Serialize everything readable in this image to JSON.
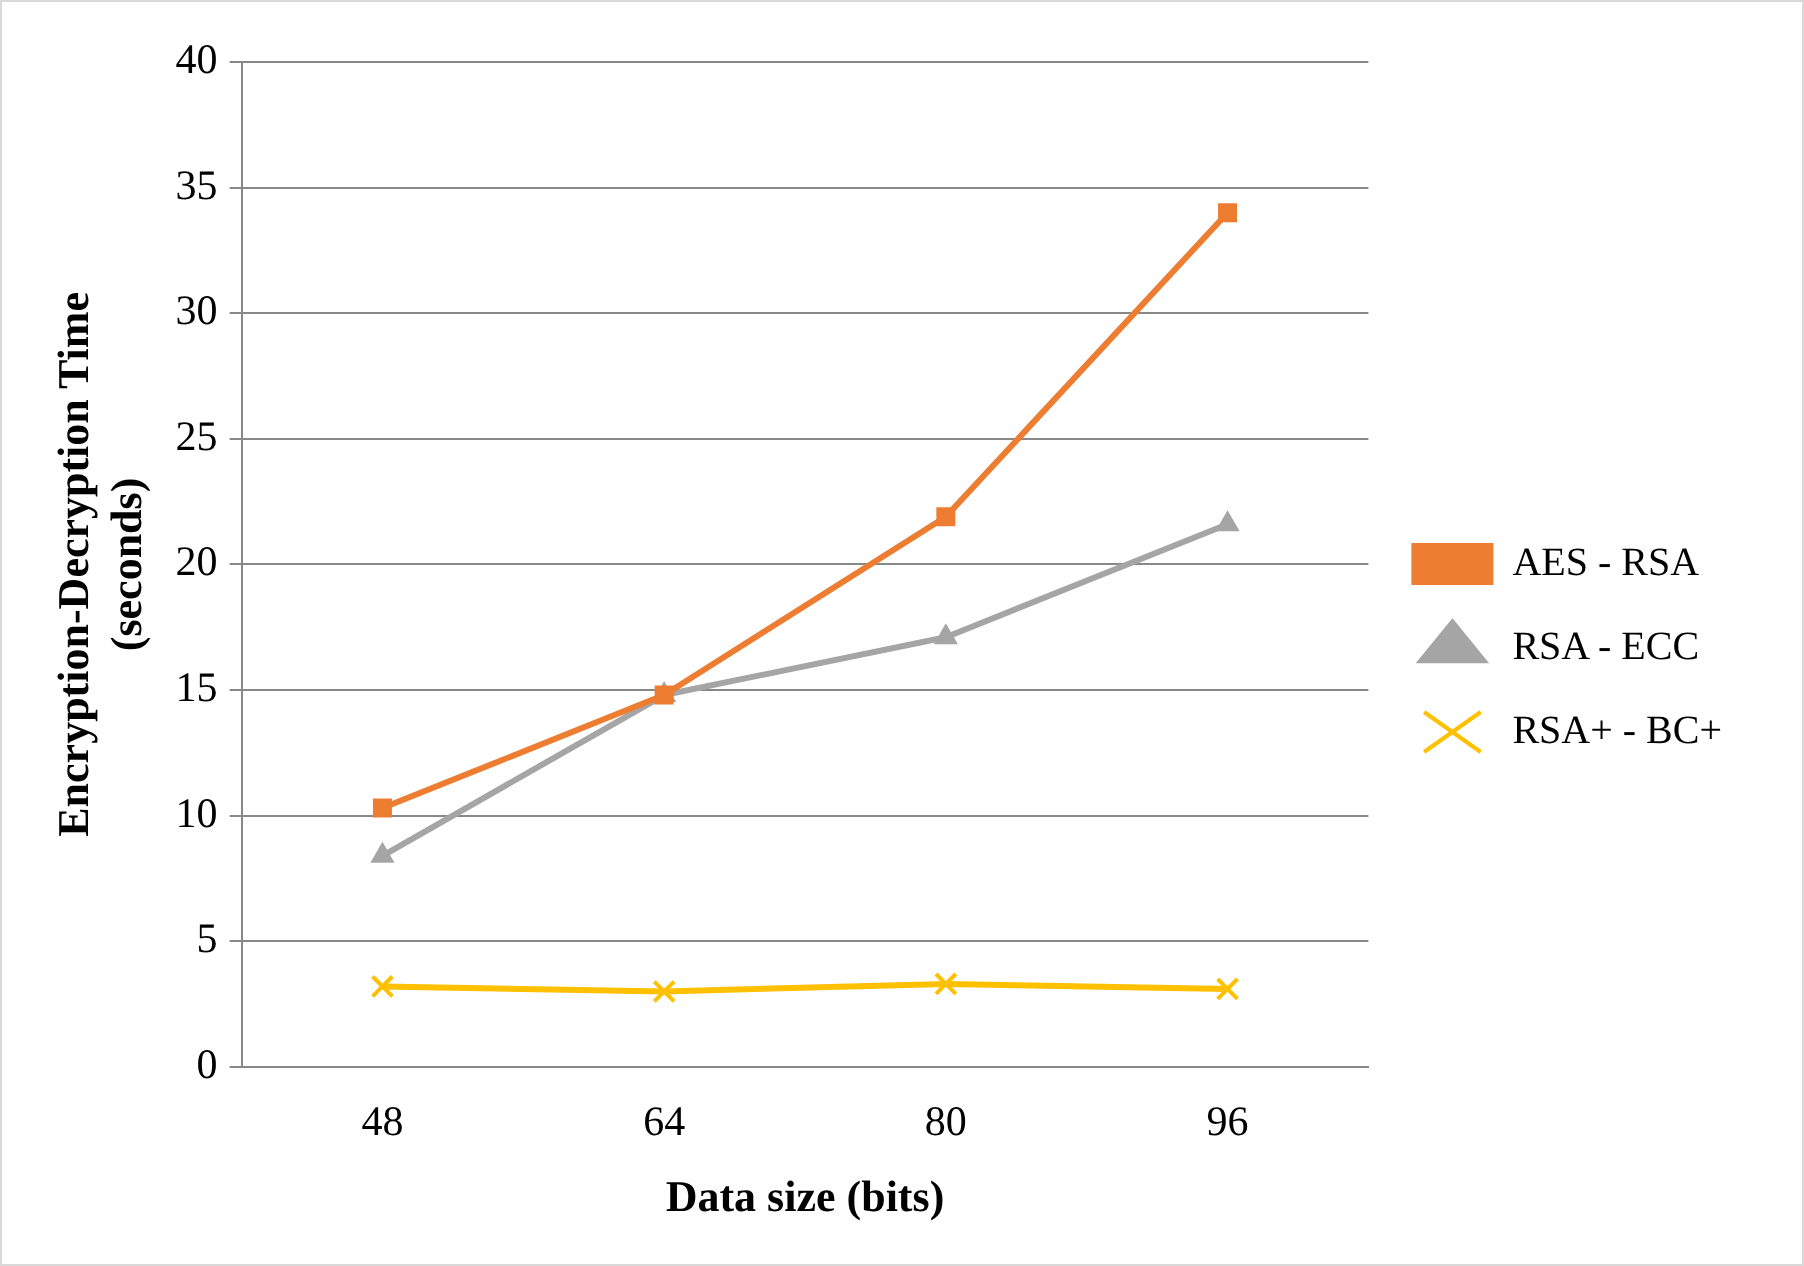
{
  "chart_data": {
    "type": "line",
    "xlabel": "Data size (bits)",
    "ylabel": "Encryption-Decryption Time (seconds)",
    "categories": [
      "48",
      "64",
      "80",
      "96"
    ],
    "series": [
      {
        "name": "AES - RSA",
        "color": "#ed7d31",
        "marker": "square",
        "values": [
          10.3,
          14.8,
          21.9,
          34.0
        ]
      },
      {
        "name": "RSA - ECC",
        "color": "#a5a5a5",
        "marker": "triangle",
        "values": [
          8.4,
          14.8,
          17.1,
          21.6
        ]
      },
      {
        "name": "RSA+ - BC+",
        "color": "#ffc000",
        "marker": "cross",
        "values": [
          3.2,
          3.0,
          3.3,
          3.1
        ]
      }
    ],
    "ylim": [
      0,
      40
    ],
    "yticks": [
      0,
      5,
      10,
      15,
      20,
      25,
      30,
      35,
      40
    ],
    "grid": "y",
    "legend": "right"
  }
}
